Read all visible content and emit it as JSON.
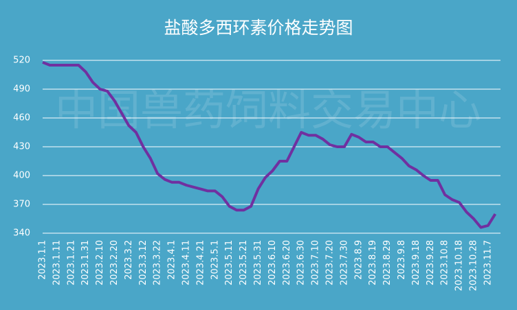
{
  "chart_data": {
    "type": "line",
    "title": "盐酸多西环素价格走势图",
    "watermark": "中国兽药饲料交易中心",
    "categories": [
      "2023.1.1",
      null,
      "2023.1.11",
      null,
      "2023.1.21",
      null,
      "2023.1.31",
      null,
      "2023.2.10",
      null,
      "2023.2.20",
      null,
      "2023.3.2",
      null,
      "2023.3.12",
      null,
      "2023.3.22",
      null,
      "2023.4.1",
      null,
      "2023.4.11",
      null,
      "2023.4.21",
      null,
      "2023.5.1",
      null,
      "2023.5.11",
      null,
      "2023.5.21",
      null,
      "2023.5.31",
      null,
      "2023.6.10",
      null,
      "2023.6.20",
      null,
      "2023.6.30",
      null,
      "2023.7.10",
      null,
      "2023.7.20",
      null,
      "2023.7.30",
      null,
      "2023.8.9",
      null,
      "2023.8.19",
      null,
      "2023.8.29",
      null,
      "2023.9.8",
      null,
      "2023.9.18",
      null,
      "2023.9.28",
      null,
      "2023.10.8",
      null,
      "2023.10.18",
      null,
      "2023.10.28",
      null,
      "2023.11.7",
      null
    ],
    "values": [
      518,
      515,
      515,
      515,
      515,
      515,
      508,
      497,
      490,
      488,
      478,
      465,
      452,
      445,
      430,
      418,
      402,
      396,
      393,
      393,
      390,
      388,
      386,
      384,
      384,
      378,
      368,
      364,
      364,
      368,
      386,
      398,
      405,
      415,
      415,
      430,
      445,
      442,
      442,
      438,
      432,
      430,
      430,
      443,
      440,
      435,
      435,
      430,
      430,
      424,
      418,
      410,
      406,
      400,
      395,
      395,
      380,
      375,
      372,
      362,
      355,
      346,
      348,
      360
    ],
    "color": "#7030a0",
    "ylim": [
      340,
      520
    ],
    "yticks": [
      340,
      370,
      400,
      430,
      460,
      490,
      520
    ],
    "grid": true
  }
}
